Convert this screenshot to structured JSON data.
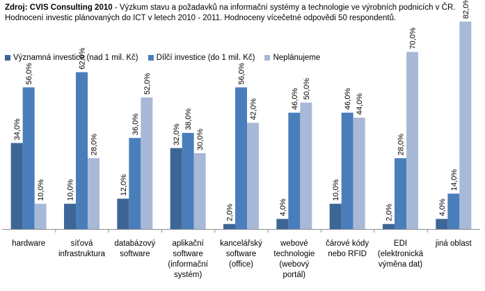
{
  "caption": {
    "source": "Zdroj: CVIS Consulting  2010",
    "text": " - Výzkum  stavu a požadavků  na informační systémy  a technologie ve výrobních podnicích v ČR. Hodnocení investic plánovaných do ICT v letech 2010 - 2011. Hodnoceny vícečetné odpovědi 50 respondentů."
  },
  "chart_data": {
    "type": "bar",
    "categories": [
      [
        "hardware"
      ],
      [
        "síťová",
        "infrastruktura"
      ],
      [
        "databázový",
        "software"
      ],
      [
        "aplikační",
        "software",
        "(informační",
        "systém)"
      ],
      [
        "kancelářský",
        "software",
        "(office)"
      ],
      [
        "webové",
        "technologie",
        "(webový",
        "portál)"
      ],
      [
        "čárové kódy",
        "nebo RFID"
      ],
      [
        "EDI",
        "(elektronická",
        "výměna dat)"
      ],
      [
        "jiná oblast"
      ]
    ],
    "series": [
      {
        "name": "Významná investice (nad 1 mil. Kč)",
        "color": "#3d6697",
        "values": [
          34,
          10,
          12,
          32,
          2,
          4,
          10,
          2,
          4
        ],
        "labels": [
          "34,0%",
          "10,0%",
          "12,0%",
          "32,0%",
          "2,0%",
          "4,0%",
          "10,0%",
          "2,0%",
          "4,0%"
        ]
      },
      {
        "name": "Dílčí investice (do  1 mil. Kč)",
        "color": "#4a7ebb",
        "values": [
          56,
          62,
          36,
          38,
          56,
          46,
          46,
          28,
          14
        ],
        "labels": [
          "56,0%",
          "62,0%",
          "36,0%",
          "38,0%",
          "56,0%",
          "46,0%",
          "46,0%",
          "28,0%",
          "14,0%"
        ]
      },
      {
        "name": "Neplánujeme",
        "color": "#a8b9d8",
        "values": [
          10,
          28,
          52,
          30,
          42,
          50,
          44,
          70,
          82
        ],
        "labels": [
          "10,0%",
          "28,0%",
          "52,0%",
          "30,0%",
          "42,0%",
          "50,0%",
          "44,0%",
          "70,0%",
          "82,0%"
        ]
      }
    ],
    "title": "",
    "xlabel": "",
    "ylabel": "",
    "ylim": [
      0,
      100
    ],
    "grid": false,
    "legend": "top-left"
  }
}
